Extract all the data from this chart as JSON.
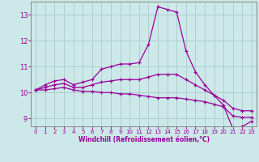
{
  "xlabel": "Windchill (Refroidissement éolien,°C)",
  "ylabel": "",
  "bg_color": "#cce8e8",
  "line_color": "#990099",
  "grid_color": "#aacccc",
  "x_ticks": [
    0,
    1,
    2,
    3,
    4,
    5,
    6,
    7,
    8,
    9,
    10,
    11,
    12,
    13,
    14,
    15,
    16,
    17,
    18,
    19,
    20,
    21,
    22,
    23
  ],
  "y_ticks": [
    9,
    10,
    11,
    12,
    13
  ],
  "xlim": [
    -0.5,
    23.5
  ],
  "ylim": [
    8.7,
    13.5
  ],
  "curve1_x": [
    0,
    1,
    2,
    3,
    4,
    5,
    6,
    7,
    8,
    9,
    10,
    11,
    12,
    13,
    14,
    15,
    16,
    17,
    18,
    19,
    20,
    21,
    22,
    23
  ],
  "curve1_y": [
    10.1,
    10.3,
    10.45,
    10.5,
    10.3,
    10.4,
    10.5,
    10.9,
    11.0,
    11.1,
    11.1,
    11.15,
    11.85,
    13.3,
    13.2,
    13.1,
    11.6,
    10.8,
    10.3,
    9.9,
    9.5,
    8.6,
    8.7,
    8.9
  ],
  "curve2_x": [
    0,
    1,
    2,
    3,
    4,
    5,
    6,
    7,
    8,
    9,
    10,
    11,
    12,
    13,
    14,
    15,
    16,
    17,
    18,
    19,
    20,
    21,
    22,
    23
  ],
  "curve2_y": [
    10.1,
    10.2,
    10.3,
    10.35,
    10.2,
    10.2,
    10.3,
    10.4,
    10.45,
    10.5,
    10.5,
    10.5,
    10.6,
    10.7,
    10.7,
    10.7,
    10.5,
    10.3,
    10.1,
    9.9,
    9.7,
    9.4,
    9.3,
    9.3
  ],
  "curve3_x": [
    0,
    1,
    2,
    3,
    4,
    5,
    6,
    7,
    8,
    9,
    10,
    11,
    12,
    13,
    14,
    15,
    16,
    17,
    18,
    19,
    20,
    21,
    22,
    23
  ],
  "curve3_y": [
    10.1,
    10.1,
    10.15,
    10.2,
    10.1,
    10.05,
    10.05,
    10.0,
    10.0,
    9.95,
    9.95,
    9.9,
    9.85,
    9.8,
    9.8,
    9.8,
    9.75,
    9.7,
    9.65,
    9.55,
    9.45,
    9.1,
    9.05,
    9.05
  ]
}
